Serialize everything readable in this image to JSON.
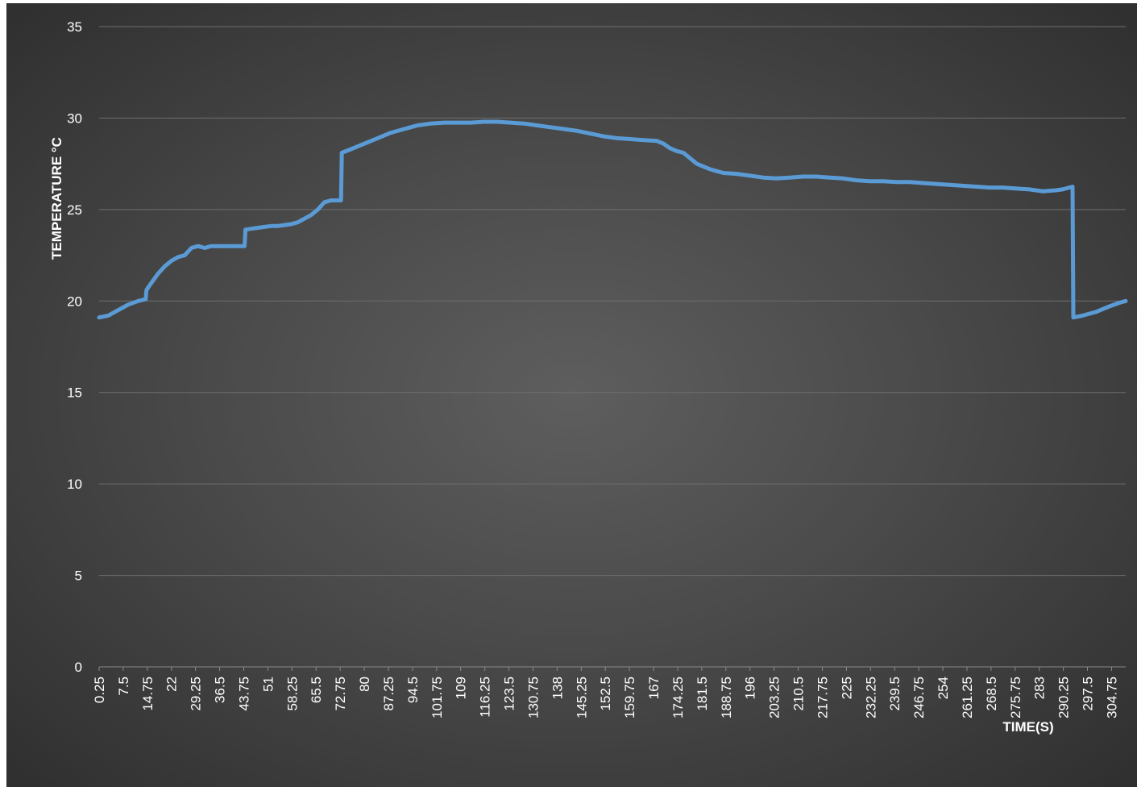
{
  "chart_data": {
    "type": "line",
    "title": "",
    "xlabel": "TIME(S)",
    "ylabel": "TEMPERATURE °C",
    "ylim": [
      0,
      35
    ],
    "xlim": [
      0.25,
      309.0
    ],
    "y_ticks": [
      "0",
      "5",
      "10",
      "15",
      "20",
      "25",
      "30",
      "35"
    ],
    "x_ticks": [
      "0.25",
      "7.5",
      "14.75",
      "22",
      "29.25",
      "36.5",
      "43.75",
      "51",
      "58.25",
      "65.5",
      "72.75",
      "80",
      "87.25",
      "94.5",
      "101.75",
      "109",
      "116.25",
      "123.5",
      "130.75",
      "138",
      "145.25",
      "152.5",
      "159.75",
      "167",
      "174.25",
      "181.5",
      "188.75",
      "196",
      "203.25",
      "210.5",
      "217.75",
      "225",
      "232.25",
      "239.5",
      "246.75",
      "254",
      "261.25",
      "268.5",
      "275.75",
      "283",
      "290.25",
      "297.5",
      "304.75"
    ],
    "grid": true,
    "legend": "none",
    "series_color": "#5b9bd5",
    "series": [
      {
        "x": [
          0.25,
          3,
          6,
          9,
          12,
          14.25,
          14.5,
          16,
          18,
          20,
          22,
          24,
          26,
          28,
          30,
          32,
          34,
          36,
          38,
          40,
          42,
          44,
          44.25,
          46,
          48,
          50,
          52,
          54,
          56,
          58,
          60,
          62,
          64,
          66,
          68,
          70,
          72,
          73,
          73.25,
          76,
          80,
          84,
          88,
          92,
          96,
          100,
          104,
          108,
          112,
          116,
          120,
          124,
          128,
          132,
          136,
          140,
          144,
          148,
          152,
          156,
          160,
          164,
          168,
          170,
          172,
          174,
          176,
          178,
          180,
          182,
          184,
          188,
          192,
          196,
          200,
          204,
          208,
          212,
          216,
          220,
          224,
          228,
          232,
          236,
          240,
          244,
          248,
          252,
          256,
          260,
          264,
          268,
          272,
          276,
          280,
          284,
          288,
          290,
          292,
          293,
          293.25,
          296,
          300,
          304,
          307,
          309
        ],
        "y": [
          19.1,
          19.2,
          19.5,
          19.8,
          20.0,
          20.1,
          20.6,
          21.0,
          21.5,
          21.9,
          22.2,
          22.4,
          22.5,
          22.9,
          23.0,
          22.9,
          23.0,
          23.0,
          23.0,
          23.0,
          23.0,
          23.0,
          23.9,
          23.95,
          24.0,
          24.05,
          24.1,
          24.1,
          24.15,
          24.2,
          24.3,
          24.5,
          24.7,
          25.0,
          25.4,
          25.5,
          25.5,
          25.5,
          28.1,
          28.3,
          28.6,
          28.9,
          29.2,
          29.4,
          29.6,
          29.7,
          29.75,
          29.75,
          29.75,
          29.8,
          29.8,
          29.75,
          29.7,
          29.6,
          29.5,
          29.4,
          29.3,
          29.15,
          29.0,
          28.9,
          28.85,
          28.8,
          28.75,
          28.6,
          28.35,
          28.2,
          28.1,
          27.8,
          27.5,
          27.35,
          27.2,
          27.0,
          26.95,
          26.85,
          26.75,
          26.7,
          26.75,
          26.8,
          26.8,
          26.75,
          26.7,
          26.6,
          26.55,
          26.55,
          26.5,
          26.5,
          26.45,
          26.4,
          26.35,
          26.3,
          26.25,
          26.2,
          26.2,
          26.15,
          26.1,
          26.0,
          26.05,
          26.1,
          26.2,
          26.25,
          19.1,
          19.2,
          19.4,
          19.7,
          19.9,
          20.0
        ]
      }
    ]
  }
}
